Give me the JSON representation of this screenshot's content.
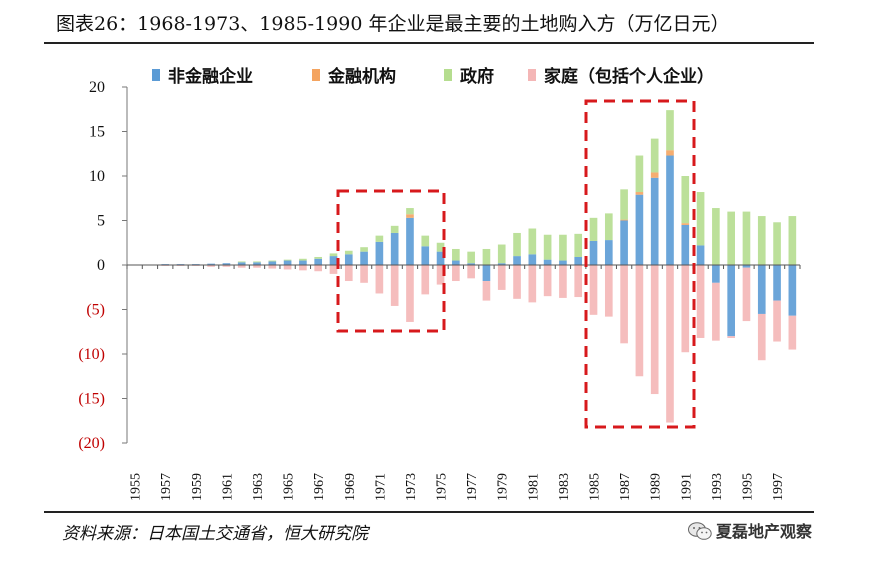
{
  "title": "图表26：1968-1973、1985-1990 年企业是最主要的土地购入方（万亿日元）",
  "source": "资料来源：日本国土交通省，恒大研究院",
  "watermark": "夏磊地产观察",
  "colors": {
    "non_financial": "#5b9bd5",
    "financial": "#f4a460",
    "government": "#b5dd8f",
    "household": "#f4b6b6",
    "highlight_box": "#d7191c",
    "negative_tick": "#c00000"
  },
  "chart_data": {
    "type": "bar",
    "stacked": true,
    "ylim": [
      -20,
      20
    ],
    "yticks": [
      20,
      15,
      10,
      5,
      0,
      -5,
      -10,
      -15,
      -20
    ],
    "ytick_labels": [
      "20",
      "15",
      "10",
      "5",
      "0",
      "(5)",
      "(10)",
      "(15)",
      "(20)"
    ],
    "x": [
      1955,
      1956,
      1957,
      1958,
      1959,
      1960,
      1961,
      1962,
      1963,
      1964,
      1965,
      1966,
      1967,
      1968,
      1969,
      1970,
      1971,
      1972,
      1973,
      1974,
      1975,
      1976,
      1977,
      1978,
      1979,
      1980,
      1981,
      1982,
      1983,
      1984,
      1985,
      1986,
      1987,
      1988,
      1989,
      1990,
      1991,
      1992,
      1993,
      1994,
      1995,
      1996,
      1997,
      1998
    ],
    "xtick_labels": [
      "1955",
      "1957",
      "1959",
      "1961",
      "1963",
      "1965",
      "1967",
      "1969",
      "1971",
      "1973",
      "1975",
      "1977",
      "1979",
      "1981",
      "1983",
      "1985",
      "1987",
      "1989",
      "1991",
      "1993",
      "1995",
      "1997"
    ],
    "legend_position": "top",
    "series": [
      {
        "name": "非金融企业",
        "color_key": "non_financial",
        "values": [
          0.05,
          0.05,
          0.1,
          0.1,
          0.1,
          0.15,
          0.2,
          0.3,
          0.3,
          0.4,
          0.5,
          0.5,
          0.7,
          1.0,
          1.2,
          1.5,
          2.6,
          3.6,
          5.3,
          2.1,
          1.5,
          0.5,
          0.2,
          -1.8,
          0.2,
          1.0,
          1.2,
          0.6,
          0.5,
          0.9,
          2.7,
          2.8,
          5.0,
          7.9,
          9.8,
          12.3,
          4.5,
          2.2,
          -2.0,
          -8.0,
          -0.3,
          -5.5,
          -4.0,
          -5.7
        ]
      },
      {
        "name": "金融机构",
        "color_key": "financial",
        "values": [
          0,
          0,
          0,
          0,
          0,
          0,
          0,
          0,
          0,
          0,
          0,
          0,
          0,
          0,
          0,
          0,
          0,
          0,
          0.4,
          0,
          0,
          0,
          0,
          0,
          0,
          0,
          0,
          0,
          0,
          0,
          0,
          0,
          0.1,
          0.3,
          0.6,
          0.6,
          0.2,
          0,
          0,
          0,
          0,
          0,
          0,
          0
        ]
      },
      {
        "name": "政府",
        "color_key": "government",
        "values": [
          0,
          0,
          0,
          0,
          0,
          0,
          0,
          0.1,
          0.1,
          0.1,
          0.1,
          0.2,
          0.2,
          0.3,
          0.4,
          0.5,
          0.7,
          0.8,
          0.7,
          1.2,
          1.0,
          1.3,
          1.3,
          1.8,
          2.1,
          2.6,
          2.9,
          2.8,
          2.9,
          2.6,
          2.6,
          3.0,
          3.4,
          4.1,
          3.8,
          4.5,
          5.3,
          6.0,
          6.4,
          6.0,
          6.0,
          5.5,
          4.8,
          5.5
        ]
      },
      {
        "name": "家庭（包括个人企业）",
        "color_key": "household",
        "values": [
          -0.05,
          -0.05,
          -0.1,
          -0.1,
          -0.1,
          -0.2,
          -0.2,
          -0.3,
          -0.3,
          -0.4,
          -0.5,
          -0.6,
          -0.7,
          -1.0,
          -1.8,
          -2.0,
          -3.2,
          -4.6,
          -6.4,
          -3.3,
          -2.2,
          -1.8,
          -1.5,
          -2.2,
          -2.8,
          -3.8,
          -4.2,
          -3.5,
          -3.7,
          -3.6,
          -5.6,
          -5.8,
          -8.8,
          -12.5,
          -14.5,
          -17.7,
          -9.8,
          -8.2,
          -6.5,
          -0.2,
          -6.0,
          -5.2,
          -4.6,
          -3.8
        ]
      }
    ]
  }
}
